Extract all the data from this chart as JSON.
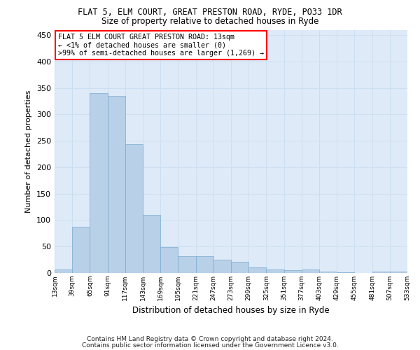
{
  "title": "FLAT 5, ELM COURT, GREAT PRESTON ROAD, RYDE, PO33 1DR",
  "subtitle": "Size of property relative to detached houses in Ryde",
  "xlabel": "Distribution of detached houses by size in Ryde",
  "ylabel": "Number of detached properties",
  "footnote1": "Contains HM Land Registry data © Crown copyright and database right 2024.",
  "footnote2": "Contains public sector information licensed under the Government Licence v3.0.",
  "bar_values": [
    6,
    87,
    340,
    335,
    244,
    110,
    49,
    32,
    32,
    25,
    21,
    10,
    6,
    5,
    6,
    3,
    1,
    0,
    3,
    2
  ],
  "categories": [
    "13sqm",
    "39sqm",
    "65sqm",
    "91sqm",
    "117sqm",
    "143sqm",
    "169sqm",
    "195sqm",
    "221sqm",
    "247sqm",
    "273sqm",
    "299sqm",
    "325sqm",
    "351sqm",
    "377sqm",
    "403sqm",
    "429sqm",
    "455sqm",
    "481sqm",
    "507sqm",
    "533sqm"
  ],
  "bar_color": "#b8d0e8",
  "bar_edge_color": "#7aabcf",
  "grid_color": "#ccdff0",
  "background_color": "#deeaf8",
  "annotation_line1": "FLAT 5 ELM COURT GREAT PRESTON ROAD: 13sqm",
  "annotation_line2": "← <1% of detached houses are smaller (0)",
  "annotation_line3": ">99% of semi-detached houses are larger (1,269) →",
  "ylim": [
    0,
    460
  ],
  "yticks": [
    0,
    50,
    100,
    150,
    200,
    250,
    300,
    350,
    400,
    450
  ]
}
